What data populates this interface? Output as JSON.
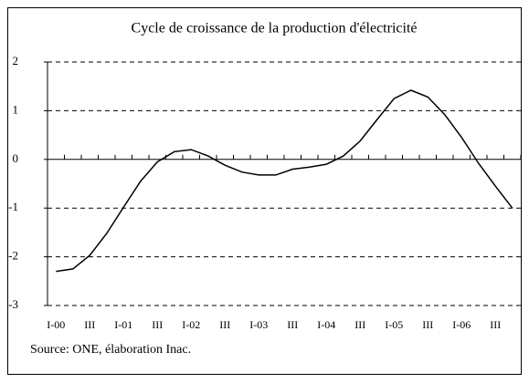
{
  "chart_data": {
    "type": "line",
    "title": "Cycle de croissance de la production d'électricité",
    "source": "Source: ONE, élaboration Inac.",
    "categories": [
      "I-00",
      null,
      "III",
      null,
      "I-01",
      null,
      "III",
      null,
      "I-02",
      null,
      "III",
      null,
      "I-03",
      null,
      "III",
      null,
      "I-04",
      null,
      "III",
      null,
      "I-05",
      null,
      "III",
      null,
      "I-06",
      null,
      "III",
      null
    ],
    "series": [
      {
        "name": "Cycle",
        "color": "#000000",
        "values": [
          -2.3,
          -2.25,
          -1.97,
          -1.52,
          -0.98,
          -0.45,
          -0.05,
          0.16,
          0.2,
          0.07,
          -0.12,
          -0.26,
          -0.32,
          -0.32,
          -0.2,
          -0.16,
          -0.1,
          0.07,
          0.38,
          0.82,
          1.25,
          1.42,
          1.28,
          0.92,
          0.45,
          -0.08,
          -0.55,
          -1.0
        ]
      }
    ],
    "ylim": [
      -3,
      2
    ],
    "yticks": [
      -3,
      -2,
      -1,
      0,
      1,
      2
    ],
    "grid": true
  }
}
